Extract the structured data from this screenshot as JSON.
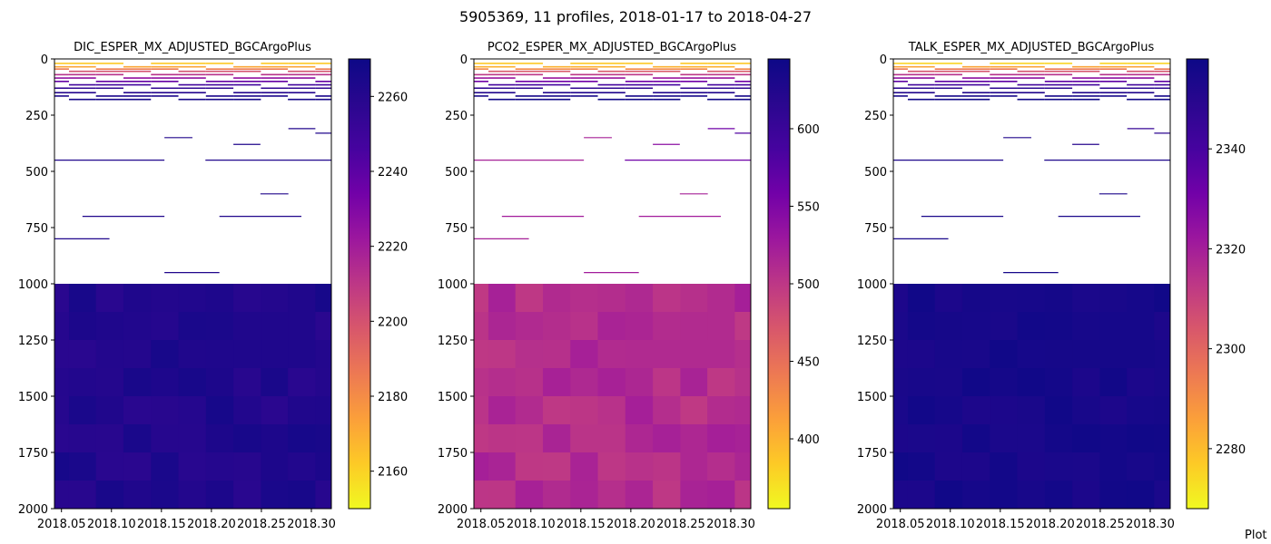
{
  "figure": {
    "title": "5905369, 11 profiles, 2018-01-17 to 2018-04-27",
    "corner_note": "Plot"
  },
  "chart_data": [
    {
      "type": "heatmap",
      "title": "DIC_ESPER_MX_ADJUSTED_BGCArgoPlus",
      "xlim": [
        2018.043,
        2018.32
      ],
      "ylim": [
        2000,
        0
      ],
      "x_ticks": [
        2018.05,
        2018.1,
        2018.15,
        2018.2,
        2018.25,
        2018.3
      ],
      "x_tick_labels": [
        "2018.05",
        "2018.10",
        "2018.15",
        "2018.20",
        "2018.25",
        "2018.30"
      ],
      "y_ticks": [
        0,
        250,
        500,
        750,
        1000,
        1250,
        1500,
        1750,
        2000
      ],
      "y_tick_labels": [
        "0",
        "250",
        "500",
        "750",
        "1000",
        "1250",
        "1500",
        "1750",
        "2000"
      ],
      "colormap": "plasma_r",
      "clim": [
        2150,
        2270
      ],
      "colorbar_ticks": [
        2160,
        2180,
        2200,
        2220,
        2240,
        2260
      ],
      "colorbar_tick_labels": [
        "2160",
        "2180",
        "2200",
        "2220",
        "2240",
        "2260"
      ],
      "profile_times": [
        2018.044,
        2018.071,
        2018.098,
        2018.126,
        2018.153,
        2018.181,
        2018.208,
        2018.236,
        2018.263,
        2018.29,
        2018.318
      ],
      "shallow_depths": [
        20,
        35,
        45,
        55,
        70,
        85,
        100,
        115,
        130,
        150,
        165,
        180
      ],
      "shallow_values": [
        2162,
        2172,
        2185,
        2200,
        2212,
        2225,
        2238,
        2248,
        2255,
        2260,
        2264,
        2266
      ],
      "mid_lines": [
        {
          "depth": 350,
          "from": 2018.153,
          "to": 2018.181,
          "value": 2262
        },
        {
          "depth": 380,
          "from": 2018.222,
          "to": 2018.249,
          "value": 2262
        },
        {
          "depth": 310,
          "from": 2018.277,
          "to": 2018.304,
          "value": 2262
        },
        {
          "depth": 330,
          "from": 2018.304,
          "to": 2018.32,
          "value": 2262
        },
        {
          "depth": 450,
          "from": 2018.043,
          "to": 2018.153,
          "value": 2262
        },
        {
          "depth": 450,
          "from": 2018.194,
          "to": 2018.32,
          "value": 2262
        },
        {
          "depth": 600,
          "from": 2018.249,
          "to": 2018.277,
          "value": 2262
        },
        {
          "depth": 700,
          "from": 2018.071,
          "to": 2018.153,
          "value": 2262
        },
        {
          "depth": 700,
          "from": 2018.208,
          "to": 2018.29,
          "value": 2262
        },
        {
          "depth": 800,
          "from": 2018.043,
          "to": 2018.098,
          "value": 2262
        },
        {
          "depth": 950,
          "from": 2018.153,
          "to": 2018.208,
          "value": 2262
        }
      ],
      "deep_base_depth": 1000,
      "deep_base_value": 2262,
      "deep_variation": 4
    },
    {
      "type": "heatmap",
      "title": "PCO2_ESPER_MX_ADJUSTED_BGCArgoPlus",
      "xlim": [
        2018.043,
        2018.32
      ],
      "ylim": [
        2000,
        0
      ],
      "x_ticks": [
        2018.05,
        2018.1,
        2018.15,
        2018.2,
        2018.25,
        2018.3
      ],
      "x_tick_labels": [
        "2018.05",
        "2018.10",
        "2018.15",
        "2018.20",
        "2018.25",
        "2018.30"
      ],
      "y_ticks": [
        0,
        250,
        500,
        750,
        1000,
        1250,
        1500,
        1750,
        2000
      ],
      "y_tick_labels": [
        "0",
        "250",
        "500",
        "750",
        "1000",
        "1250",
        "1500",
        "1750",
        "2000"
      ],
      "colormap": "plasma_r",
      "clim": [
        355,
        645
      ],
      "colorbar_ticks": [
        400,
        450,
        500,
        550,
        600
      ],
      "colorbar_tick_labels": [
        "400",
        "450",
        "500",
        "550",
        "600"
      ],
      "profile_times": [
        2018.044,
        2018.071,
        2018.098,
        2018.126,
        2018.153,
        2018.181,
        2018.208,
        2018.236,
        2018.263,
        2018.29,
        2018.318
      ],
      "shallow_depths": [
        20,
        35,
        45,
        55,
        70,
        85,
        100,
        115,
        130,
        150,
        165,
        180
      ],
      "shallow_values": [
        385,
        400,
        430,
        470,
        500,
        530,
        560,
        590,
        610,
        625,
        635,
        640
      ],
      "mid_lines": [
        {
          "depth": 350,
          "from": 2018.153,
          "to": 2018.181,
          "value": 520
        },
        {
          "depth": 380,
          "from": 2018.222,
          "to": 2018.249,
          "value": 540
        },
        {
          "depth": 310,
          "from": 2018.277,
          "to": 2018.304,
          "value": 560
        },
        {
          "depth": 330,
          "from": 2018.304,
          "to": 2018.32,
          "value": 580
        },
        {
          "depth": 450,
          "from": 2018.043,
          "to": 2018.153,
          "value": 520
        },
        {
          "depth": 450,
          "from": 2018.194,
          "to": 2018.32,
          "value": 560
        },
        {
          "depth": 600,
          "from": 2018.249,
          "to": 2018.277,
          "value": 520
        },
        {
          "depth": 700,
          "from": 2018.071,
          "to": 2018.153,
          "value": 525
        },
        {
          "depth": 700,
          "from": 2018.208,
          "to": 2018.29,
          "value": 525
        },
        {
          "depth": 800,
          "from": 2018.043,
          "to": 2018.098,
          "value": 520
        },
        {
          "depth": 950,
          "from": 2018.153,
          "to": 2018.208,
          "value": 525
        }
      ],
      "deep_base_depth": 1000,
      "deep_base_value": 510,
      "deep_variation": 12
    },
    {
      "type": "heatmap",
      "title": "TALK_ESPER_MX_ADJUSTED_BGCArgoPlus",
      "xlim": [
        2018.043,
        2018.32
      ],
      "ylim": [
        2000,
        0
      ],
      "x_ticks": [
        2018.05,
        2018.1,
        2018.15,
        2018.2,
        2018.25,
        2018.3
      ],
      "x_tick_labels": [
        "2018.05",
        "2018.10",
        "2018.15",
        "2018.20",
        "2018.25",
        "2018.30"
      ],
      "y_ticks": [
        0,
        250,
        500,
        750,
        1000,
        1250,
        1500,
        1750,
        2000
      ],
      "y_tick_labels": [
        "0",
        "250",
        "500",
        "750",
        "1000",
        "1250",
        "1500",
        "1750",
        "2000"
      ],
      "colormap": "plasma_r",
      "clim": [
        2268,
        2358
      ],
      "colorbar_ticks": [
        2280,
        2300,
        2320,
        2340
      ],
      "colorbar_tick_labels": [
        "2280",
        "2300",
        "2320",
        "2340"
      ],
      "profile_times": [
        2018.044,
        2018.071,
        2018.098,
        2018.126,
        2018.153,
        2018.181,
        2018.208,
        2018.236,
        2018.263,
        2018.29,
        2018.318
      ],
      "shallow_depths": [
        20,
        35,
        45,
        55,
        70,
        85,
        100,
        115,
        130,
        150,
        165,
        180
      ],
      "shallow_values": [
        2275,
        2285,
        2295,
        2305,
        2315,
        2325,
        2335,
        2342,
        2348,
        2352,
        2355,
        2357
      ],
      "mid_lines": [
        {
          "depth": 350,
          "from": 2018.153,
          "to": 2018.181,
          "value": 2352
        },
        {
          "depth": 380,
          "from": 2018.222,
          "to": 2018.249,
          "value": 2350
        },
        {
          "depth": 310,
          "from": 2018.277,
          "to": 2018.304,
          "value": 2345
        },
        {
          "depth": 330,
          "from": 2018.304,
          "to": 2018.32,
          "value": 2348
        },
        {
          "depth": 450,
          "from": 2018.043,
          "to": 2018.153,
          "value": 2353
        },
        {
          "depth": 450,
          "from": 2018.194,
          "to": 2018.32,
          "value": 2353
        },
        {
          "depth": 600,
          "from": 2018.249,
          "to": 2018.277,
          "value": 2353
        },
        {
          "depth": 700,
          "from": 2018.071,
          "to": 2018.153,
          "value": 2354
        },
        {
          "depth": 700,
          "from": 2018.208,
          "to": 2018.29,
          "value": 2354
        },
        {
          "depth": 800,
          "from": 2018.043,
          "to": 2018.098,
          "value": 2354
        },
        {
          "depth": 950,
          "from": 2018.153,
          "to": 2018.208,
          "value": 2355
        }
      ],
      "deep_base_depth": 1000,
      "deep_base_value": 2355,
      "deep_variation": 2
    }
  ]
}
